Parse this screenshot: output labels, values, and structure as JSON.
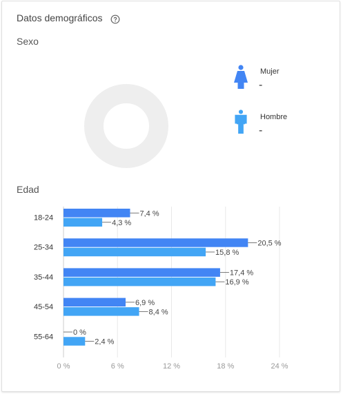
{
  "card": {
    "title": "Datos demográficos",
    "help_icon": "help-circle-icon"
  },
  "gender": {
    "label": "Sexo",
    "female": {
      "label": "Mujer",
      "value": "-",
      "icon": "female-person-icon"
    },
    "male": {
      "label": "Hombre",
      "value": "-",
      "icon": "male-person-icon"
    },
    "donut_color": "#eeeeee"
  },
  "age": {
    "label": "Edad"
  },
  "colors": {
    "primary_bar": "#4285f4",
    "secondary_bar": "#42a5f5",
    "icon_blue": "#4285f4"
  },
  "chart_data": {
    "type": "bar",
    "orientation": "horizontal",
    "categories": [
      "18-24",
      "25-34",
      "35-44",
      "45-54",
      "55-64"
    ],
    "series": [
      {
        "values": [
          7.4,
          20.5,
          17.4,
          6.9,
          0
        ],
        "labels": [
          "7,4 %",
          "20,5 %",
          "17,4 %",
          "6,9 %",
          "0 %"
        ]
      },
      {
        "values": [
          4.3,
          15.8,
          16.9,
          8.4,
          2.4
        ],
        "labels": [
          "4,3 %",
          "15,8 %",
          "16,9 %",
          "8,4 %",
          "2,4 %"
        ]
      }
    ],
    "xlim": [
      0,
      24
    ],
    "xticks": [
      "0 %",
      "6 %",
      "12 %",
      "18 %",
      "24 %"
    ],
    "grid": true
  }
}
